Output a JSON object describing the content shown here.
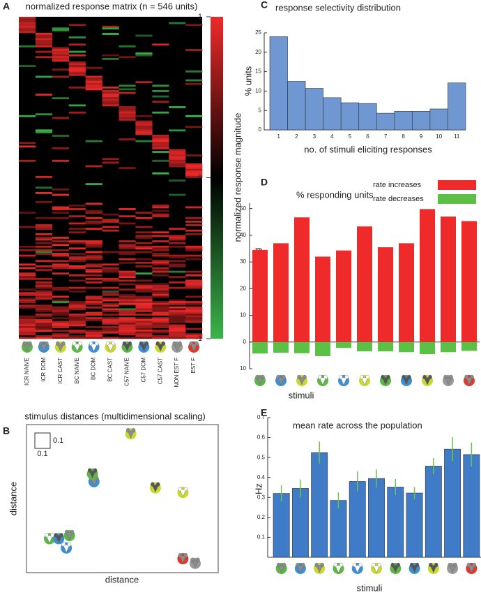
{
  "chart_data": [
    {
      "type": "heatmap",
      "panel": "A",
      "title": "normalized response matrix (n = 546 units)",
      "categories": [
        "ICR NAIVE",
        "ICR DOM",
        "ICR CAST",
        "BC NAIVE",
        "BC DOM",
        "BC CAST",
        "C57 NAIVE",
        "C57 DOM",
        "C57 CAST",
        "NON EST F",
        "EST F"
      ],
      "colorbar_label": "normalized response magnitude",
      "zlim": [
        -1,
        1
      ],
      "zticks": [
        1,
        0,
        -1
      ],
      "colors": [
        "#3cb44a",
        "#000000",
        "#ee2a2a"
      ],
      "icon_rings": [
        "#5cb746",
        "#3d8fd1",
        "#c9d82f",
        "#5cb746",
        "#3d8fd1",
        "#c9d82f",
        "#5cb746",
        "#3d8fd1",
        "#c9d82f",
        "#999999",
        "#e0392b"
      ],
      "icon_faces": [
        "#8c8c8c",
        "#8c8c8c",
        "#8c8c8c",
        "#ffffff",
        "#ffffff",
        "#ffffff",
        "#555555",
        "#555555",
        "#555555",
        "#8c8c8c",
        "#8c8c8c"
      ]
    },
    {
      "type": "scatter",
      "panel": "B",
      "title": "stimulus distances (multidimensional scaling)",
      "xlabel": "distance",
      "ylabel": "distance",
      "scale_bar": [
        0.1,
        0.1
      ],
      "xlim": [
        0,
        1.25
      ],
      "ylim": [
        0,
        0.96
      ],
      "x": [
        0.28,
        0.44,
        0.68,
        0.15,
        0.26,
        1.02,
        0.43,
        0.21,
        0.84,
        1.1,
        1.02
      ],
      "y": [
        0.24,
        0.59,
        0.9,
        0.22,
        0.16,
        0.52,
        0.64,
        0.22,
        0.55,
        0.06,
        0.09
      ]
    },
    {
      "type": "bar",
      "panel": "C",
      "title": "response selectivity distribution",
      "xlabel": "no. of stimuli eliciting responses",
      "ylabel": "% units",
      "categories": [
        "1",
        "2",
        "3",
        "4",
        "5",
        "6",
        "7",
        "8",
        "9",
        "10",
        "11"
      ],
      "values": [
        24,
        12.5,
        10.7,
        8.3,
        7,
        6.8,
        4.3,
        4.8,
        4.8,
        5.4,
        12.1
      ],
      "color": "#6f97d2",
      "ylim": [
        0,
        25
      ],
      "yticks": [
        0,
        5,
        10,
        15,
        20,
        25
      ]
    },
    {
      "type": "diverging",
      "panel": "D",
      "title": "% responding units",
      "xlabel": "stimuli",
      "ylabel": "% units responding",
      "legend": "top-right",
      "series": [
        {
          "name": "rate increases",
          "color": "#ee2a2a",
          "values": [
            34.5,
            37,
            46.7,
            32,
            34.3,
            43.3,
            35.5,
            37,
            49.8,
            47,
            45.3
          ]
        },
        {
          "name": "rate decreases",
          "color": "#5cbf46",
          "values": [
            -4.3,
            -4,
            -4.2,
            -5.3,
            -2.2,
            -3.5,
            -3.5,
            -3.8,
            -4.5,
            -3.8,
            -3.3
          ]
        }
      ],
      "ylim": [
        -10,
        52
      ],
      "yticks": [
        {
          "value": -10,
          "label": "10"
        },
        0,
        10,
        20,
        30,
        40,
        50
      ]
    },
    {
      "type": "errorbar",
      "panel": "E",
      "title": "mean rate across the population",
      "xlabel": "stimuli",
      "ylabel": "Hz",
      "values": [
        0.32,
        0.345,
        0.525,
        0.285,
        0.38,
        0.395,
        0.352,
        0.322,
        0.457,
        0.542,
        0.515
      ],
      "errors": [
        0.04,
        0.045,
        0.055,
        0.04,
        0.05,
        0.045,
        0.04,
        0.03,
        0.04,
        0.06,
        0.06
      ],
      "color": "#3f7bc6",
      "error_color": "#6cc24a",
      "ylim": [
        0,
        0.7
      ],
      "yticks": [
        0.1,
        0.2,
        0.3,
        0.4,
        0.5,
        0.6,
        0.7
      ]
    }
  ]
}
